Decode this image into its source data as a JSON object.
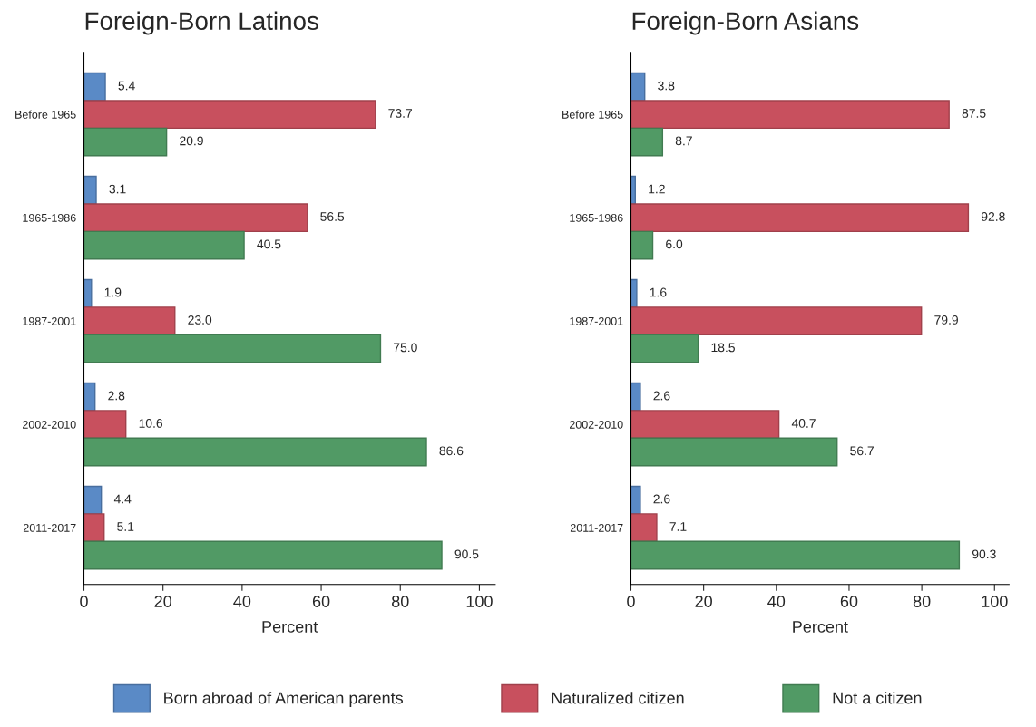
{
  "chart_data": [
    {
      "type": "bar",
      "orientation": "horizontal",
      "title": "Foreign-Born Latinos",
      "xlabel": "Percent",
      "categories": [
        "Before 1965",
        "1965-1986",
        "1987-2001",
        "2002-2010",
        "2011-2017"
      ],
      "series": [
        {
          "name": "Born abroad of American parents",
          "color": "#5a8ac6",
          "values": [
            5.4,
            3.1,
            1.9,
            2.8,
            4.4
          ],
          "value_labels": [
            "5.4",
            "3.1",
            "1.9",
            "2.8",
            "4.4"
          ]
        },
        {
          "name": "Naturalized citizen",
          "color": "#c8505e",
          "values": [
            73.7,
            56.5,
            23.0,
            10.6,
            5.1
          ],
          "value_labels": [
            "73.7",
            "56.5",
            "23.0",
            "10.6",
            "5.1"
          ]
        },
        {
          "name": "Not a citizen",
          "color": "#519a65",
          "values": [
            20.9,
            40.5,
            75.0,
            86.6,
            90.5
          ],
          "value_labels": [
            "20.9",
            "40.5",
            "75.0",
            "86.6",
            "90.5"
          ]
        }
      ],
      "xlim": [
        0,
        104
      ],
      "xticks": [
        0,
        20,
        40,
        60,
        80,
        100
      ],
      "grid": false,
      "legend": "bottom"
    },
    {
      "type": "bar",
      "orientation": "horizontal",
      "title": "Foreign-Born Asians",
      "xlabel": "Percent",
      "categories": [
        "Before 1965",
        "1965-1986",
        "1987-2001",
        "2002-2010",
        "2011-2017"
      ],
      "series": [
        {
          "name": "Born abroad of American parents",
          "color": "#5a8ac6",
          "values": [
            3.8,
            1.2,
            1.6,
            2.6,
            2.6
          ],
          "value_labels": [
            "3.8",
            "1.2",
            "1.6",
            "2.6",
            "2.6"
          ]
        },
        {
          "name": "Naturalized citizen",
          "color": "#c8505e",
          "values": [
            87.5,
            92.8,
            79.9,
            40.7,
            7.1
          ],
          "value_labels": [
            "87.5",
            "92.8",
            "79.9",
            "40.7",
            "7.1"
          ]
        },
        {
          "name": "Not a citizen",
          "color": "#519a65",
          "values": [
            8.7,
            6.0,
            18.5,
            56.7,
            90.3
          ],
          "value_labels": [
            "8.7",
            "6.0",
            "18.5",
            "56.7",
            "90.3"
          ]
        }
      ],
      "xlim": [
        0,
        104
      ],
      "xticks": [
        0,
        20,
        40,
        60,
        80,
        100
      ],
      "grid": false,
      "legend": "bottom"
    }
  ]
}
